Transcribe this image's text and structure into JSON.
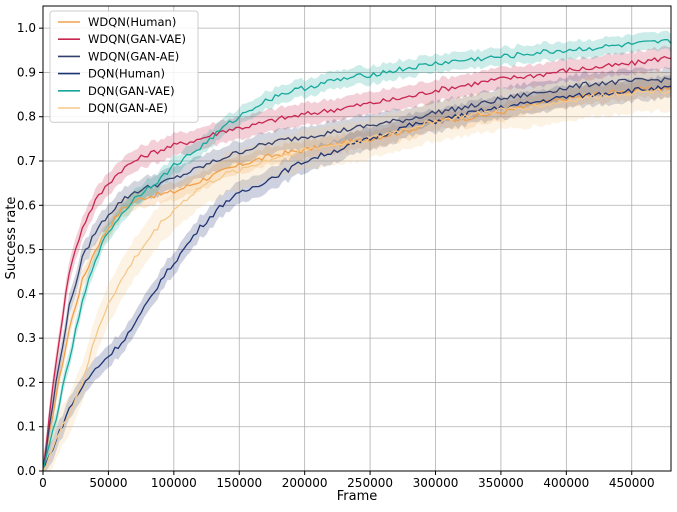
{
  "chart_data": {
    "type": "line",
    "title": "",
    "xlabel": "Frame",
    "ylabel": "Success rate",
    "xlim": [
      0,
      480000
    ],
    "ylim": [
      0.0,
      1.05
    ],
    "grid": true,
    "legend_position": "top-left",
    "x_ticks": [
      0,
      50000,
      100000,
      150000,
      200000,
      250000,
      300000,
      350000,
      400000,
      450000
    ],
    "x_tick_labels": [
      "0",
      "50000",
      "100000",
      "150000",
      "200000",
      "250000",
      "300000",
      "350000",
      "400000",
      "450000"
    ],
    "y_ticks": [
      0.0,
      0.1,
      0.2,
      0.3,
      0.4,
      0.5,
      0.6,
      0.7,
      0.8,
      0.9,
      1.0
    ],
    "y_tick_labels": [
      "0.0",
      "0.1",
      "0.2",
      "0.3",
      "0.4",
      "0.5",
      "0.6",
      "0.7",
      "0.8",
      "0.9",
      "1.0"
    ],
    "x": [
      0,
      10000,
      20000,
      30000,
      40000,
      50000,
      60000,
      70000,
      80000,
      90000,
      100000,
      120000,
      140000,
      160000,
      180000,
      200000,
      220000,
      250000,
      280000,
      300000,
      330000,
      350000,
      380000,
      400000,
      420000,
      450000,
      480000
    ],
    "series": [
      {
        "name": "WDQN(Human)",
        "color": "#f0a04b",
        "band": 0.02,
        "values": [
          0.0,
          0.17,
          0.32,
          0.43,
          0.5,
          0.55,
          0.59,
          0.61,
          0.62,
          0.625,
          0.63,
          0.655,
          0.68,
          0.7,
          0.715,
          0.725,
          0.735,
          0.75,
          0.77,
          0.79,
          0.8,
          0.81,
          0.83,
          0.84,
          0.85,
          0.86,
          0.865
        ]
      },
      {
        "name": "WDQN(GAN-VAE)",
        "color": "#c8254f",
        "band": 0.025,
        "values": [
          0.0,
          0.25,
          0.45,
          0.55,
          0.61,
          0.65,
          0.68,
          0.7,
          0.715,
          0.725,
          0.735,
          0.75,
          0.77,
          0.78,
          0.795,
          0.805,
          0.815,
          0.83,
          0.845,
          0.86,
          0.875,
          0.885,
          0.895,
          0.905,
          0.91,
          0.92,
          0.935
        ]
      },
      {
        "name": "WDQN(GAN-AE)",
        "color": "#34406b",
        "band": 0.025,
        "values": [
          0.0,
          0.2,
          0.37,
          0.48,
          0.54,
          0.58,
          0.61,
          0.63,
          0.64,
          0.65,
          0.66,
          0.685,
          0.71,
          0.73,
          0.745,
          0.755,
          0.765,
          0.78,
          0.795,
          0.81,
          0.825,
          0.84,
          0.855,
          0.865,
          0.875,
          0.88,
          0.885
        ]
      },
      {
        "name": "DQN(Human)",
        "color": "#1f3473",
        "band": 0.025,
        "values": [
          0.0,
          0.07,
          0.14,
          0.19,
          0.23,
          0.26,
          0.29,
          0.33,
          0.38,
          0.43,
          0.47,
          0.55,
          0.61,
          0.64,
          0.67,
          0.7,
          0.72,
          0.75,
          0.78,
          0.79,
          0.81,
          0.82,
          0.835,
          0.845,
          0.85,
          0.86,
          0.865
        ]
      },
      {
        "name": "DQN(GAN-VAE)",
        "color": "#17a89c",
        "band": 0.02,
        "values": [
          0.0,
          0.12,
          0.25,
          0.38,
          0.48,
          0.54,
          0.58,
          0.615,
          0.64,
          0.66,
          0.69,
          0.73,
          0.78,
          0.82,
          0.85,
          0.865,
          0.88,
          0.895,
          0.91,
          0.92,
          0.93,
          0.935,
          0.945,
          0.95,
          0.955,
          0.963,
          0.97
        ]
      },
      {
        "name": "DQN(GAN-AE)",
        "color": "#f5c88a",
        "band": 0.045,
        "values": [
          0.0,
          0.07,
          0.13,
          0.2,
          0.3,
          0.38,
          0.43,
          0.48,
          0.52,
          0.56,
          0.59,
          0.64,
          0.67,
          0.69,
          0.71,
          0.725,
          0.735,
          0.75,
          0.775,
          0.79,
          0.805,
          0.815,
          0.825,
          0.835,
          0.845,
          0.855,
          0.86
        ]
      }
    ]
  }
}
